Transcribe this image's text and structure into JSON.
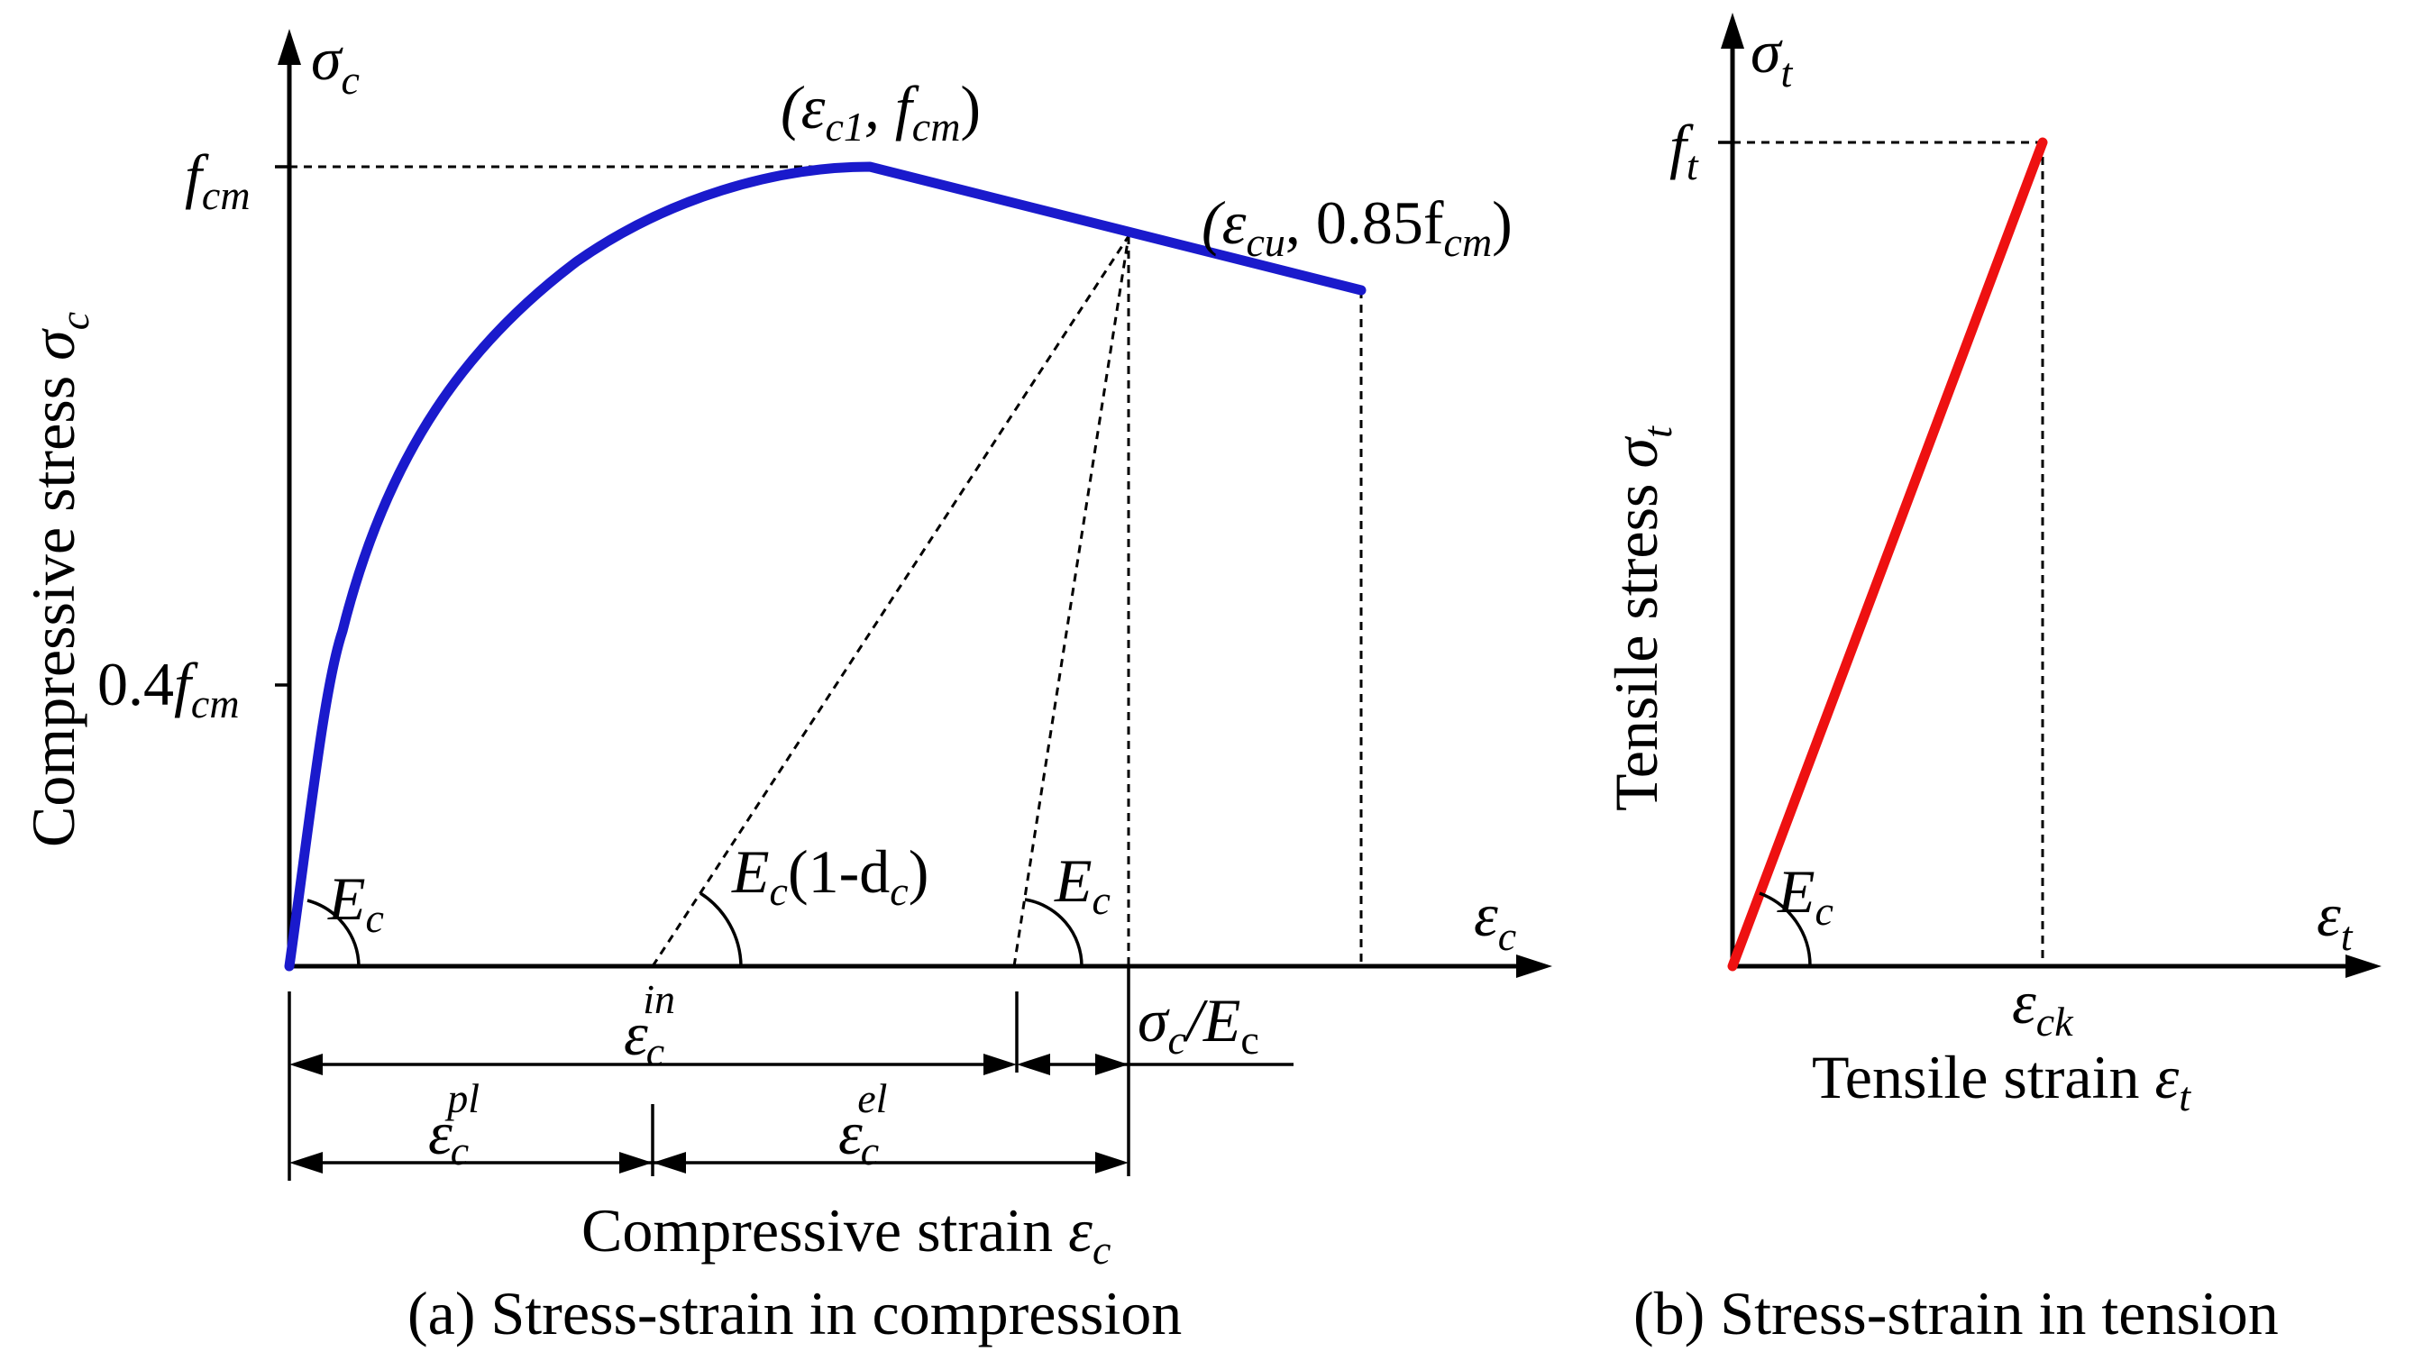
{
  "panels": {
    "compression": {
      "caption": "(a) Stress-strain in compression",
      "y_axis_label": "Compressive stress",
      "y_axis_symbol": "σ",
      "y_axis_symbol_sub": "c",
      "x_axis_label": "Compressive strain",
      "x_axis_symbol": "ε",
      "x_axis_symbol_sub": "c",
      "tick_fcm": {
        "main": "f",
        "sub": "cm"
      },
      "tick_04fcm": {
        "prefix": "0.4",
        "main": "f",
        "sub": "cm"
      },
      "peak_point": {
        "open": "(ε",
        "sub1": "c1",
        "mid": ", f",
        "sub2": "cm",
        "close": ")"
      },
      "ultimate_point": {
        "open": "(ε",
        "sub1": "cu",
        "mid": ", 0.85f",
        "sub2": "cm",
        "close": ")"
      },
      "modulus_origin": {
        "main": "E",
        "sub": "c"
      },
      "modulus_damaged": {
        "main": "E",
        "sub": "c",
        "rest": "(1-d",
        "sub2": "c",
        "close": ")"
      },
      "modulus_unload": {
        "main": "E",
        "sub": "c"
      },
      "strain_in": {
        "main": "ε",
        "sub": "c",
        "sup": "in"
      },
      "strain_pl": {
        "main": "ε",
        "sub": "c",
        "sup": "pl"
      },
      "strain_el": {
        "main": "ε",
        "sub": "c",
        "sup": "el"
      },
      "ratio_label": {
        "main": "σ",
        "sub": "c",
        "slash": "/E",
        "sub2": "c"
      },
      "curve_color": "#1a1acc"
    },
    "tension": {
      "caption": "(b) Stress-strain in tension",
      "y_axis_label": "Tensile stress",
      "y_axis_symbol": "σ",
      "y_axis_symbol_sub": "t",
      "x_axis_label": "Tensile strain",
      "x_axis_symbol": "ε",
      "x_axis_symbol_sub": "t",
      "tick_ft": {
        "main": "f",
        "sub": "t"
      },
      "tick_eck": {
        "main": "ε",
        "sub": "ck"
      },
      "modulus": {
        "main": "E",
        "sub": "c"
      },
      "line_color": "#ee1111"
    }
  }
}
